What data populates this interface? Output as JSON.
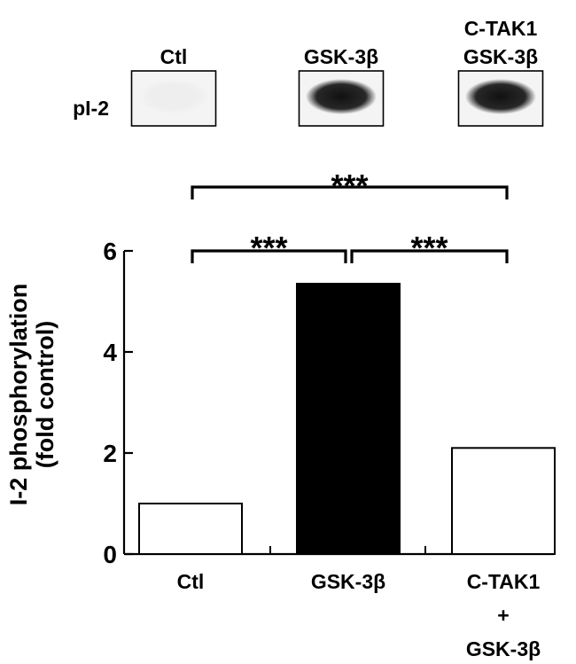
{
  "blot": {
    "row_label": "pI-2",
    "lane_labels": [
      [
        "Ctl"
      ],
      [
        "GSK-3β"
      ],
      [
        "C-TAK1",
        "GSK-3β"
      ]
    ],
    "band_colors": [
      "#eeeeee",
      "#111111",
      "#111111"
    ]
  },
  "chart_data": {
    "type": "bar",
    "categories": [
      [
        "Ctl"
      ],
      [
        "GSK-3β"
      ],
      [
        "C-TAK1",
        "+",
        "GSK-3β"
      ]
    ],
    "values": [
      1.0,
      5.35,
      2.1
    ],
    "bar_colors": [
      "#ffffff",
      "#000000",
      "#ffffff"
    ],
    "ylabel": [
      "I-2 phosphorylation",
      "(fold control)"
    ],
    "ylim": [
      0,
      6
    ],
    "yticks": [
      0,
      2,
      4,
      6
    ],
    "grid": false,
    "significance": [
      {
        "from": 0,
        "to": 1,
        "label": "***"
      },
      {
        "from": 1,
        "to": 2,
        "label": "***"
      },
      {
        "from": 0,
        "to": 2,
        "label": "***"
      }
    ]
  }
}
